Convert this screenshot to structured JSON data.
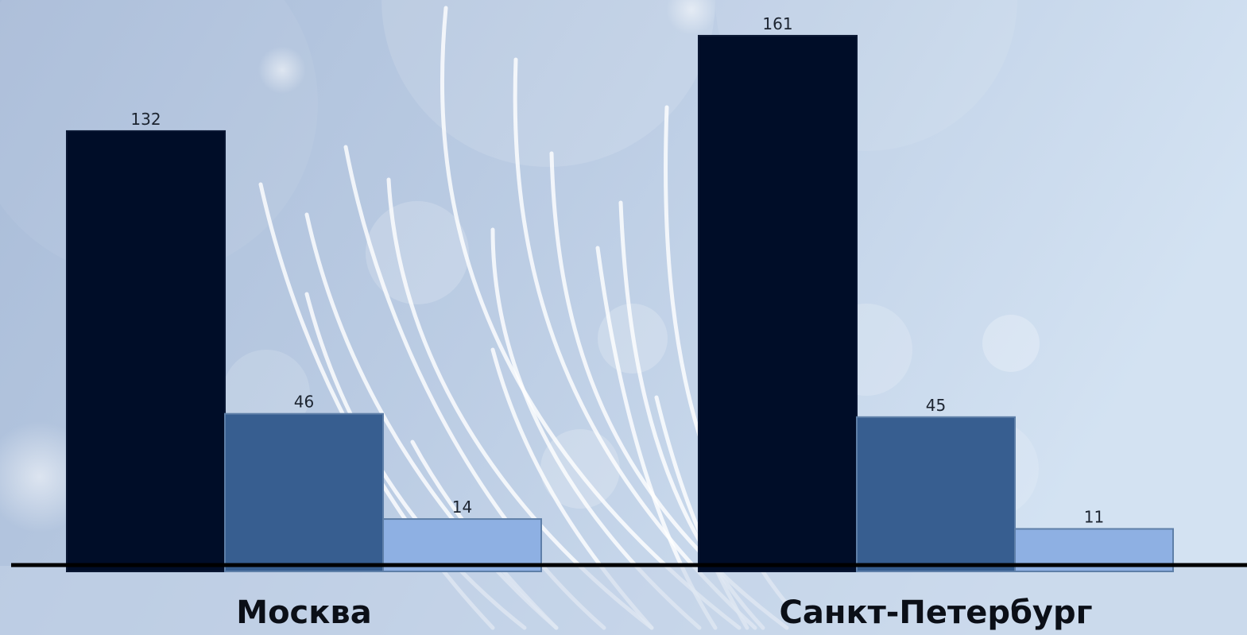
{
  "chart_data": {
    "type": "bar",
    "categories": [
      "Москва",
      "Санкт-Петербург"
    ],
    "series": [
      {
        "values": [
          132,
          161
        ]
      },
      {
        "values": [
          46,
          45
        ]
      },
      {
        "values": [
          14,
          11
        ]
      }
    ],
    "data_labels_shown": true,
    "legend": "none",
    "grid": false
  },
  "colors": {
    "series": [
      "#000d28",
      "#375e90",
      "#8eb0e3"
    ],
    "background": "#b7cbe4",
    "axis": "#000000"
  }
}
